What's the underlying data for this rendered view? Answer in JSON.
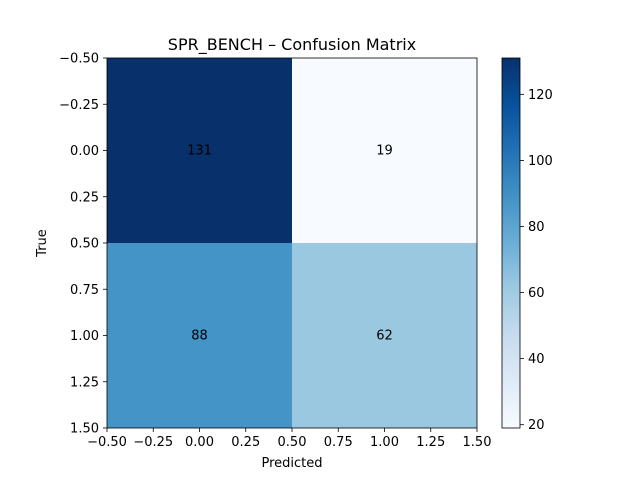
{
  "chart_data": {
    "type": "heatmap",
    "title": "SPR_BENCH – Confusion Matrix",
    "xlabel": "Predicted",
    "ylabel": "True",
    "xlim": [
      -0.5,
      1.5
    ],
    "ylim": [
      1.5,
      -0.5
    ],
    "x_ticks": [
      "−0.50",
      "−0.25",
      "0.00",
      "0.25",
      "0.50",
      "0.75",
      "1.00",
      "1.25",
      "1.50"
    ],
    "y_ticks": [
      "−0.50",
      "−0.25",
      "0.00",
      "0.25",
      "0.50",
      "0.75",
      "1.00",
      "1.25",
      "1.50"
    ],
    "matrix": [
      [
        131,
        19
      ],
      [
        88,
        62
      ]
    ],
    "cells": [
      {
        "row": 0,
        "col": 0,
        "value": 131,
        "label": "131"
      },
      {
        "row": 0,
        "col": 1,
        "value": 19,
        "label": "19"
      },
      {
        "row": 1,
        "col": 0,
        "value": 88,
        "label": "88"
      },
      {
        "row": 1,
        "col": 1,
        "value": 62,
        "label": "62"
      }
    ],
    "colorbar": {
      "colormap": "Blues",
      "vmin": 19,
      "vmax": 131,
      "ticks": [
        20,
        40,
        60,
        80,
        100,
        120
      ],
      "tick_labels": [
        "20",
        "40",
        "60",
        "80",
        "100",
        "120"
      ]
    },
    "grid": false
  }
}
